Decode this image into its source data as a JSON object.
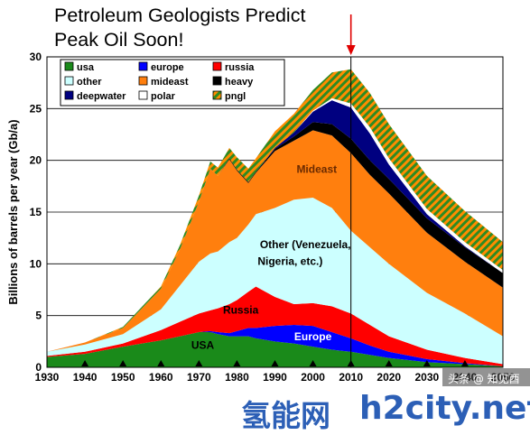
{
  "title_lines": [
    "Petroleum Geologists Predict",
    "Peak Oil Soon!"
  ],
  "watermark": {
    "left": "氢能网",
    "right": "h2city.net",
    "overlay": "头条 @ 知见酉"
  },
  "chart_data": {
    "type": "area",
    "stacked": true,
    "title": "Petroleum Geologists Predict Peak Oil Soon!",
    "ylabel": "Billions of barrels per year (Gb/a)",
    "xlabel": "",
    "xlim": [
      1930,
      2050
    ],
    "ylim": [
      0,
      30
    ],
    "xticks": [
      1930,
      1940,
      1950,
      1960,
      1970,
      1980,
      1990,
      2000,
      2010,
      2020,
      2030,
      2040,
      2050
    ],
    "yticks": [
      0,
      5,
      10,
      15,
      20,
      25,
      30
    ],
    "grid": "horizontal",
    "legend_position": "top-left inside",
    "peak_marker_year": 2010,
    "x": [
      1930,
      1940,
      1950,
      1960,
      1965,
      1970,
      1973,
      1975,
      1978,
      1980,
      1983,
      1985,
      1990,
      1995,
      2000,
      2005,
      2010,
      2015,
      2020,
      2030,
      2040,
      2050
    ],
    "series": [
      {
        "name": "usa",
        "color": "#1a8a1a",
        "values": [
          1.0,
          1.3,
          2.0,
          2.6,
          3.0,
          3.4,
          3.4,
          3.2,
          3.0,
          3.0,
          3.0,
          2.8,
          2.5,
          2.3,
          2.0,
          1.7,
          1.5,
          1.2,
          0.9,
          0.5,
          0.3,
          0.1
        ]
      },
      {
        "name": "europe",
        "color": "#0000ff",
        "values": [
          0.0,
          0.0,
          0.0,
          0.0,
          0.0,
          0.0,
          0.1,
          0.2,
          0.3,
          0.5,
          0.8,
          1.0,
          1.5,
          1.8,
          2.0,
          1.7,
          1.3,
          0.9,
          0.6,
          0.3,
          0.1,
          0.0
        ]
      },
      {
        "name": "russia",
        "color": "#ff0000",
        "values": [
          0.1,
          0.2,
          0.3,
          1.0,
          1.4,
          1.8,
          2.0,
          2.3,
          2.8,
          3.0,
          3.5,
          4.0,
          2.8,
          2.0,
          2.2,
          2.5,
          2.4,
          2.0,
          1.5,
          0.9,
          0.5,
          0.2
        ]
      },
      {
        "name": "other",
        "color": "#ccffff",
        "values": [
          0.4,
          0.7,
          0.9,
          2.0,
          3.5,
          5.0,
          5.5,
          5.5,
          6.0,
          6.0,
          6.5,
          7.0,
          8.6,
          10.1,
          10.2,
          9.5,
          8.0,
          7.5,
          7.0,
          5.5,
          4.3,
          2.7
        ]
      },
      {
        "name": "mideast",
        "color": "#ff7f0e",
        "values": [
          0.0,
          0.2,
          0.6,
          2.0,
          3.5,
          5.8,
          8.2,
          7.3,
          8.0,
          6.5,
          4.0,
          4.0,
          5.5,
          5.7,
          6.5,
          7.0,
          7.5,
          7.0,
          6.8,
          5.8,
          5.0,
          4.7
        ]
      },
      {
        "name": "heavy",
        "color": "#000000",
        "values": [
          0.0,
          0.0,
          0.0,
          0.0,
          0.0,
          0.0,
          0.0,
          0.0,
          0.1,
          0.1,
          0.1,
          0.1,
          0.2,
          0.4,
          0.8,
          1.1,
          1.4,
          1.4,
          1.4,
          1.4,
          1.4,
          1.4
        ]
      },
      {
        "name": "deepwater",
        "color": "#000080",
        "values": [
          0.0,
          0.0,
          0.0,
          0.0,
          0.0,
          0.0,
          0.0,
          0.0,
          0.0,
          0.0,
          0.0,
          0.0,
          0.1,
          0.4,
          1.0,
          2.3,
          3.0,
          2.6,
          1.4,
          0.4,
          0.1,
          0.0
        ]
      },
      {
        "name": "polar",
        "color": "#ffffff",
        "values": [
          0.0,
          0.0,
          0.0,
          0.0,
          0.0,
          0.0,
          0.0,
          0.0,
          0.0,
          0.0,
          0.0,
          0.0,
          0.0,
          0.0,
          0.1,
          0.2,
          0.4,
          0.6,
          0.6,
          0.5,
          0.4,
          0.3
        ]
      },
      {
        "name": "pngl",
        "color": "#2e8b22",
        "pattern_color": "#ff8c00",
        "values": [
          0.0,
          0.0,
          0.1,
          0.2,
          0.4,
          0.6,
          0.7,
          0.8,
          1.0,
          1.2,
          1.3,
          1.3,
          1.6,
          1.8,
          2.0,
          2.5,
          3.3,
          3.3,
          3.3,
          3.2,
          3.0,
          2.7
        ]
      }
    ],
    "area_labels": [
      {
        "text": "Mideast",
        "x": 2001,
        "y": 18.8,
        "color": "#6b2a00"
      },
      {
        "text": "Other (Venezuela,",
        "x": 1998,
        "y": 11.5,
        "color": "#000000"
      },
      {
        "text": "Nigeria, etc.)",
        "x": 1994,
        "y": 9.9,
        "color": "#000000"
      },
      {
        "text": "Russia",
        "x": 1981,
        "y": 5.2,
        "color": "#000000"
      },
      {
        "text": "Europe",
        "x": 2000,
        "y": 2.6,
        "color": "#ffffff"
      },
      {
        "text": "USA",
        "x": 1971,
        "y": 1.8,
        "color": "#000000"
      }
    ]
  }
}
